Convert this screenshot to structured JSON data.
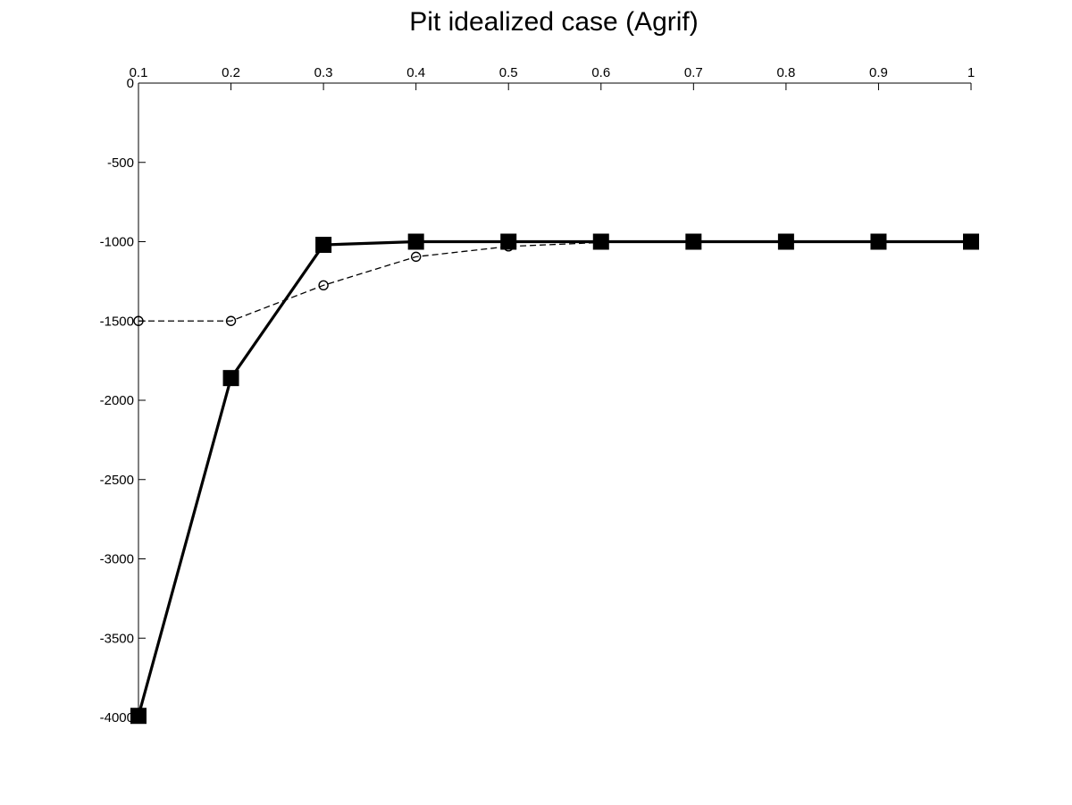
{
  "chart_data": {
    "type": "line",
    "title": "Pit idealized case (Agrif)",
    "xlabel": "",
    "ylabel": "",
    "x_axis_position": "top",
    "xlim": [
      0.1,
      1
    ],
    "ylim": [
      -4000,
      0
    ],
    "x_ticks": [
      "0.1",
      "0.2",
      "0.3",
      "0.4",
      "0.5",
      "0.6",
      "0.7",
      "0.8",
      "0.9",
      "1"
    ],
    "y_ticks": [
      "0",
      "-500",
      "-1000",
      "-1500",
      "-2000",
      "-2500",
      "-3000",
      "-3500",
      "-4000"
    ],
    "x_tick_values": [
      0.1,
      0.2,
      0.3,
      0.4,
      0.5,
      0.6,
      0.7,
      0.8,
      0.9,
      1.0
    ],
    "y_tick_values": [
      0,
      -500,
      -1000,
      -1500,
      -2000,
      -2500,
      -3000,
      -3500,
      -4000
    ],
    "grid": false,
    "legend": "none",
    "x": [
      0.1,
      0.2,
      0.3,
      0.4,
      0.5,
      0.6,
      0.7,
      0.8,
      0.9,
      1.0
    ],
    "series": [
      {
        "style": "solid-thick",
        "marker": "filled-square",
        "color": "#000000",
        "values": [
          -3990,
          -1860,
          -1020,
          -1000,
          -1000,
          -1000,
          -1000,
          -1000,
          -1000,
          -1000
        ]
      },
      {
        "style": "dashed",
        "marker": "open-circle",
        "color": "#000000",
        "values": [
          -1500,
          -1500,
          -1275,
          -1095,
          -1030,
          -1005,
          -1000,
          -1000,
          -1000,
          -1000
        ]
      }
    ]
  }
}
